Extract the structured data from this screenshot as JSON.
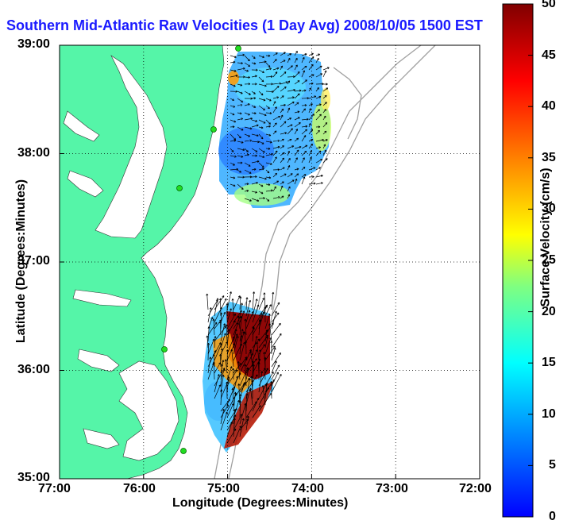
{
  "title": "Southern Mid-Atlantic Raw Velocities (1 Day Avg) 2008/10/05 1500 EST",
  "axes": {
    "xlabel": "Longitude (Degrees:Minutes)",
    "ylabel": "Latitude (Degrees:Minutes)",
    "xticks": [
      "77:00",
      "76:00",
      "75:00",
      "74:00",
      "73:00",
      "72:00"
    ],
    "yticks": [
      "39:00",
      "38:00",
      "37:00",
      "36:00",
      "35:00"
    ]
  },
  "colorbar": {
    "label": "Surface Velocity (cm/s)",
    "ticks": [
      "50",
      "45",
      "40",
      "35",
      "30",
      "25",
      "20",
      "15",
      "10",
      "5",
      "0"
    ],
    "range": [
      0,
      50
    ]
  },
  "colors": {
    "land": "#55f5a8",
    "water": "#ffffff",
    "title": "#1a1aff",
    "bathymetry": "#a0a0a0",
    "station": "#22dd22"
  }
}
